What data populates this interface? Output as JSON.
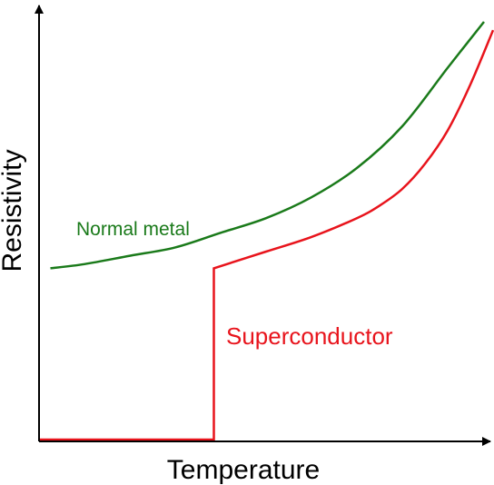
{
  "chart_data": {
    "type": "line",
    "title": "",
    "xlabel": "Temperature",
    "ylabel": "Resistivity",
    "xlim": [
      0,
      100
    ],
    "ylim": [
      0,
      100
    ],
    "grid": false,
    "series": [
      {
        "name": "Normal metal",
        "color": "#1a7a1a",
        "x": [
          2.5,
          10,
          20,
          30,
          40,
          50,
          60,
          70,
          80,
          90,
          98
        ],
        "y": [
          41,
          42,
          44,
          46,
          49.5,
          53,
          58,
          65,
          75,
          89,
          100
        ]
      },
      {
        "name": "Superconductor",
        "color": "#e8141c",
        "x": [
          0,
          38.5,
          38.5,
          50,
          60,
          70,
          75,
          80,
          85,
          90,
          95,
          100
        ],
        "y": [
          0,
          0,
          41,
          45,
          48.5,
          53,
          56,
          60,
          66,
          74,
          85,
          98
        ]
      }
    ]
  }
}
